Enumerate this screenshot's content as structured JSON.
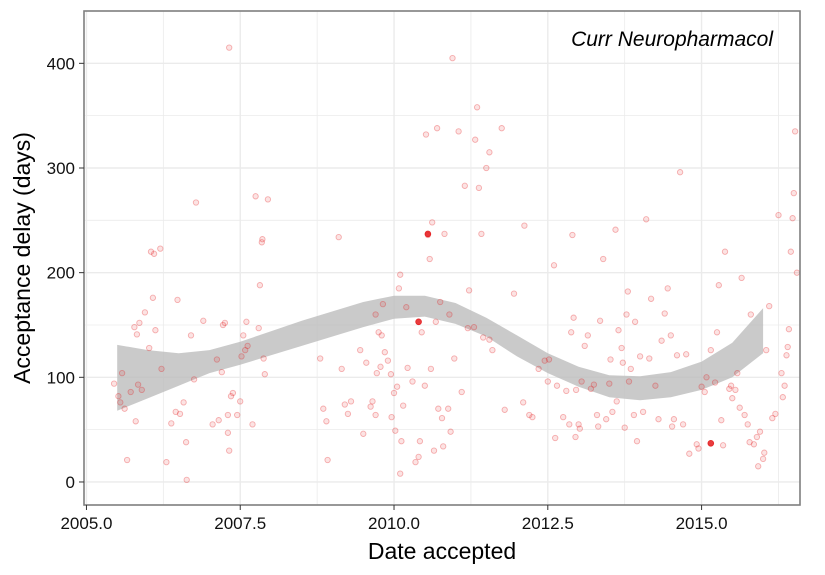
{
  "chart_data": {
    "type": "scatter",
    "title": "Curr Neuropharmacol",
    "xlabel": "Date accepted",
    "ylabel": "Acceptance delay (days)",
    "xlim": [
      2004.96,
      2016.6
    ],
    "ylim": [
      -22,
      450
    ],
    "x_ticks": [
      2005.0,
      2007.5,
      2010.0,
      2012.5,
      2015.0
    ],
    "x_tick_labels": [
      "2005.0",
      "2007.5",
      "2010.0",
      "2012.5",
      "2015.0"
    ],
    "y_ticks": [
      0,
      100,
      200,
      300,
      400
    ],
    "y_tick_labels": [
      "0",
      "100",
      "200",
      "300",
      "400"
    ],
    "grid": true,
    "legend": "none",
    "colors": {
      "points": "#e41a1c",
      "band": "#bdbdbd",
      "grid": "#ebebeb",
      "frame": "#7f7f7f"
    },
    "points": [
      [
        2005.45,
        94
      ],
      [
        2005.52,
        82
      ],
      [
        2005.55,
        76
      ],
      [
        2005.58,
        104
      ],
      [
        2005.62,
        70
      ],
      [
        2005.66,
        21
      ],
      [
        2005.72,
        86
      ],
      [
        2005.78,
        148
      ],
      [
        2005.8,
        58
      ],
      [
        2005.82,
        141
      ],
      [
        2005.84,
        93
      ],
      [
        2005.86,
        152
      ],
      [
        2005.9,
        88
      ],
      [
        2005.95,
        162
      ],
      [
        2006.02,
        128
      ],
      [
        2006.05,
        220
      ],
      [
        2006.08,
        176
      ],
      [
        2006.1,
        218
      ],
      [
        2006.12,
        145
      ],
      [
        2006.2,
        223
      ],
      [
        2006.22,
        108
      ],
      [
        2006.3,
        19
      ],
      [
        2006.38,
        56
      ],
      [
        2006.45,
        67
      ],
      [
        2006.48,
        174
      ],
      [
        2006.52,
        65
      ],
      [
        2006.58,
        76
      ],
      [
        2006.62,
        38
      ],
      [
        2006.63,
        2
      ],
      [
        2006.7,
        140
      ],
      [
        2006.78,
        267
      ],
      [
        2006.75,
        98
      ],
      [
        2006.9,
        154
      ],
      [
        2007.05,
        55
      ],
      [
        2007.12,
        117
      ],
      [
        2007.15,
        59
      ],
      [
        2007.2,
        105
      ],
      [
        2007.22,
        150
      ],
      [
        2007.25,
        152
      ],
      [
        2007.3,
        64
      ],
      [
        2007.3,
        47
      ],
      [
        2007.32,
        30
      ],
      [
        2007.35,
        82
      ],
      [
        2007.38,
        85
      ],
      [
        2007.32,
        415
      ],
      [
        2007.45,
        64
      ],
      [
        2007.5,
        77
      ],
      [
        2007.52,
        120
      ],
      [
        2007.55,
        140
      ],
      [
        2007.58,
        126
      ],
      [
        2007.6,
        153
      ],
      [
        2007.62,
        130
      ],
      [
        2007.7,
        55
      ],
      [
        2007.75,
        273
      ],
      [
        2007.8,
        147
      ],
      [
        2007.82,
        188
      ],
      [
        2007.85,
        229
      ],
      [
        2007.86,
        232
      ],
      [
        2007.88,
        118
      ],
      [
        2007.9,
        103
      ],
      [
        2007.95,
        270
      ],
      [
        2008.8,
        118
      ],
      [
        2008.85,
        70
      ],
      [
        2008.9,
        58
      ],
      [
        2008.92,
        21
      ],
      [
        2009.1,
        234
      ],
      [
        2009.15,
        108
      ],
      [
        2009.2,
        74
      ],
      [
        2009.25,
        65
      ],
      [
        2009.3,
        77
      ],
      [
        2009.45,
        126
      ],
      [
        2009.5,
        46
      ],
      [
        2009.55,
        114
      ],
      [
        2009.62,
        72
      ],
      [
        2009.65,
        77
      ],
      [
        2009.7,
        64
      ],
      [
        2009.72,
        104
      ],
      [
        2009.75,
        143
      ],
      [
        2009.78,
        110
      ],
      [
        2009.7,
        160
      ],
      [
        2009.8,
        140
      ],
      [
        2009.82,
        170
      ],
      [
        2009.85,
        124
      ],
      [
        2009.9,
        116
      ],
      [
        2009.95,
        103
      ],
      [
        2009.96,
        62
      ],
      [
        2010.0,
        85
      ],
      [
        2010.02,
        49
      ],
      [
        2010.05,
        91
      ],
      [
        2010.1,
        8
      ],
      [
        2010.12,
        39
      ],
      [
        2010.08,
        185
      ],
      [
        2010.1,
        198
      ],
      [
        2010.15,
        73
      ],
      [
        2010.2,
        167
      ],
      [
        2010.22,
        109
      ],
      [
        2010.3,
        96
      ],
      [
        2010.35,
        19
      ],
      [
        2010.4,
        24
      ],
      [
        2010.42,
        39
      ],
      [
        2010.45,
        143
      ],
      [
        2010.5,
        92
      ],
      [
        2010.52,
        332
      ],
      [
        2010.55,
        236
      ],
      [
        2010.58,
        213
      ],
      [
        2010.6,
        108
      ],
      [
        2010.62,
        248
      ],
      [
        2010.65,
        30
      ],
      [
        2010.68,
        153
      ],
      [
        2010.7,
        338
      ],
      [
        2010.72,
        70
      ],
      [
        2010.75,
        172
      ],
      [
        2010.78,
        61
      ],
      [
        2010.8,
        34
      ],
      [
        2010.82,
        237
      ],
      [
        2010.88,
        70
      ],
      [
        2010.9,
        160
      ],
      [
        2010.92,
        48
      ],
      [
        2010.95,
        405
      ],
      [
        2010.98,
        118
      ],
      [
        2011.05,
        335
      ],
      [
        2011.1,
        86
      ],
      [
        2011.15,
        283
      ],
      [
        2011.2,
        147
      ],
      [
        2011.22,
        183
      ],
      [
        2011.3,
        148
      ],
      [
        2011.32,
        327
      ],
      [
        2011.35,
        358
      ],
      [
        2011.38,
        281
      ],
      [
        2011.42,
        237
      ],
      [
        2011.45,
        138
      ],
      [
        2011.5,
        300
      ],
      [
        2011.55,
        315
      ],
      [
        2011.55,
        136
      ],
      [
        2011.6,
        126
      ],
      [
        2011.75,
        338
      ],
      [
        2011.8,
        69
      ],
      [
        2011.95,
        180
      ],
      [
        2012.1,
        76
      ],
      [
        2012.12,
        245
      ],
      [
        2012.2,
        64
      ],
      [
        2012.25,
        62
      ],
      [
        2012.35,
        108
      ],
      [
        2012.45,
        116
      ],
      [
        2012.5,
        96
      ],
      [
        2012.52,
        117
      ],
      [
        2012.6,
        207
      ],
      [
        2012.62,
        42
      ],
      [
        2012.65,
        92
      ],
      [
        2012.75,
        62
      ],
      [
        2012.8,
        87
      ],
      [
        2012.85,
        55
      ],
      [
        2012.88,
        143
      ],
      [
        2012.9,
        236
      ],
      [
        2012.92,
        157
      ],
      [
        2012.95,
        43
      ],
      [
        2012.96,
        88
      ],
      [
        2013.0,
        55
      ],
      [
        2013.02,
        51
      ],
      [
        2013.05,
        96
      ],
      [
        2013.1,
        130
      ],
      [
        2013.15,
        140
      ],
      [
        2013.2,
        89
      ],
      [
        2013.25,
        93
      ],
      [
        2013.3,
        64
      ],
      [
        2013.32,
        53
      ],
      [
        2013.35,
        154
      ],
      [
        2013.4,
        213
      ],
      [
        2013.45,
        60
      ],
      [
        2013.5,
        94
      ],
      [
        2013.52,
        117
      ],
      [
        2013.55,
        67
      ],
      [
        2013.6,
        241
      ],
      [
        2013.62,
        77
      ],
      [
        2013.65,
        145
      ],
      [
        2013.7,
        128
      ],
      [
        2013.72,
        114
      ],
      [
        2013.75,
        52
      ],
      [
        2013.78,
        160
      ],
      [
        2013.8,
        182
      ],
      [
        2013.82,
        96
      ],
      [
        2013.85,
        108
      ],
      [
        2013.9,
        64
      ],
      [
        2013.92,
        153
      ],
      [
        2013.95,
        39
      ],
      [
        2014.0,
        120
      ],
      [
        2014.05,
        67
      ],
      [
        2014.1,
        251
      ],
      [
        2014.15,
        118
      ],
      [
        2014.18,
        175
      ],
      [
        2014.25,
        92
      ],
      [
        2014.3,
        60
      ],
      [
        2014.35,
        135
      ],
      [
        2014.4,
        161
      ],
      [
        2014.45,
        185
      ],
      [
        2014.5,
        140
      ],
      [
        2014.52,
        53
      ],
      [
        2014.55,
        60
      ],
      [
        2014.6,
        121
      ],
      [
        2014.65,
        296
      ],
      [
        2014.7,
        55
      ],
      [
        2014.75,
        122
      ],
      [
        2014.8,
        27
      ],
      [
        2014.92,
        36
      ],
      [
        2014.95,
        32
      ],
      [
        2015.0,
        91
      ],
      [
        2015.05,
        86
      ],
      [
        2015.08,
        100
      ],
      [
        2015.15,
        126
      ],
      [
        2015.22,
        95
      ],
      [
        2015.25,
        143
      ],
      [
        2015.28,
        188
      ],
      [
        2015.32,
        59
      ],
      [
        2015.35,
        35
      ],
      [
        2015.38,
        220
      ],
      [
        2015.45,
        89
      ],
      [
        2015.48,
        92
      ],
      [
        2015.5,
        80
      ],
      [
        2015.55,
        88
      ],
      [
        2015.58,
        104
      ],
      [
        2015.62,
        71
      ],
      [
        2015.65,
        195
      ],
      [
        2015.7,
        64
      ],
      [
        2015.75,
        55
      ],
      [
        2015.78,
        38
      ],
      [
        2015.8,
        160
      ],
      [
        2015.85,
        36
      ],
      [
        2015.9,
        43
      ],
      [
        2015.92,
        15
      ],
      [
        2015.95,
        48
      ],
      [
        2016.0,
        22
      ],
      [
        2016.02,
        28
      ],
      [
        2016.05,
        126
      ],
      [
        2016.1,
        168
      ],
      [
        2016.15,
        61
      ],
      [
        2016.2,
        65
      ],
      [
        2016.25,
        255
      ],
      [
        2016.3,
        104
      ],
      [
        2016.32,
        81
      ],
      [
        2016.35,
        92
      ],
      [
        2016.38,
        121
      ],
      [
        2016.4,
        129
      ],
      [
        2016.42,
        146
      ],
      [
        2016.45,
        220
      ],
      [
        2016.48,
        252
      ],
      [
        2016.5,
        276
      ],
      [
        2016.52,
        335
      ],
      [
        2016.55,
        200
      ]
    ],
    "highlight_points": [
      [
        2010.55,
        237
      ],
      [
        2010.4,
        153
      ],
      [
        2015.15,
        37
      ]
    ],
    "smooth_band": {
      "x": [
        2005.5,
        2006.0,
        2006.5,
        2007.0,
        2007.5,
        2008.0,
        2008.5,
        2009.0,
        2009.5,
        2010.0,
        2010.5,
        2011.0,
        2011.5,
        2012.0,
        2012.5,
        2013.0,
        2013.5,
        2014.0,
        2014.5,
        2015.0,
        2015.5,
        2016.0
      ],
      "upper": [
        131,
        126,
        123,
        126,
        134,
        144,
        154,
        163,
        172,
        178,
        178,
        171,
        157,
        140,
        123,
        110,
        102,
        101,
        105,
        115,
        133,
        166
      ],
      "lower": [
        68,
        80,
        92,
        104,
        112,
        121,
        130,
        139,
        148,
        156,
        158,
        151,
        139,
        120,
        104,
        91,
        81,
        78,
        81,
        88,
        100,
        123
      ]
    }
  }
}
